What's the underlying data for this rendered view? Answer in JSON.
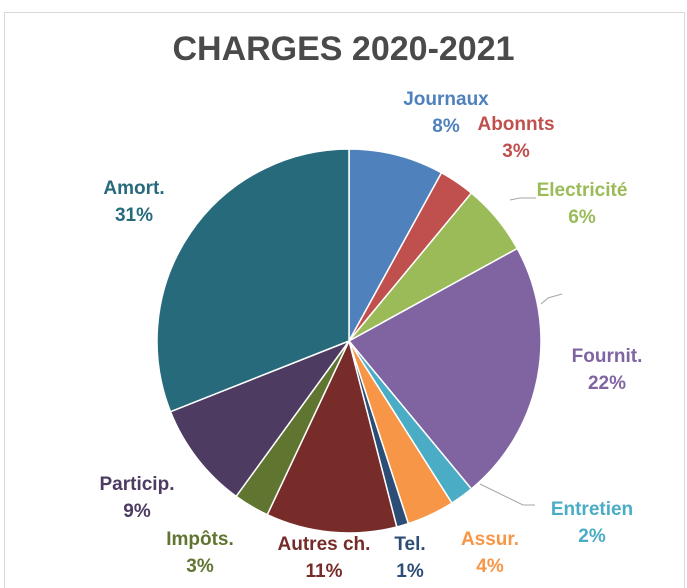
{
  "chart_data": {
    "type": "pie",
    "title": "CHARGES 2020-2021",
    "slices": [
      {
        "label": "Journaux",
        "pct_label": "8%",
        "value": 8,
        "color": "#4f81bd"
      },
      {
        "label": "Abonnts",
        "pct_label": "3%",
        "value": 3,
        "color": "#c0504d"
      },
      {
        "label": "Electricité",
        "pct_label": "6%",
        "value": 6,
        "color": "#9bbb59"
      },
      {
        "label": "Fournit.",
        "pct_label": "22%",
        "value": 22,
        "color": "#8064a2"
      },
      {
        "label": "Entretien",
        "pct_label": "2%",
        "value": 2,
        "color": "#4bacc6"
      },
      {
        "label": "Assur.",
        "pct_label": "4%",
        "value": 4,
        "color": "#f79646"
      },
      {
        "label": "Tel.",
        "pct_label": "1%",
        "value": 1,
        "color": "#2c4d75"
      },
      {
        "label": "Autres ch.",
        "pct_label": "11%",
        "value": 11,
        "color": "#772c2a"
      },
      {
        "label": "Impôts.",
        "pct_label": "3%",
        "value": 3,
        "color": "#5f7530"
      },
      {
        "label": "Particip.",
        "pct_label": "9%",
        "value": 9,
        "color": "#4d3b62"
      },
      {
        "label": "Amort.",
        "pct_label": "31%",
        "value": 31,
        "color": "#276a7c"
      }
    ],
    "legend": "none"
  }
}
